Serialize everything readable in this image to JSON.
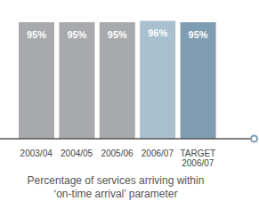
{
  "chart_data": {
    "type": "bar",
    "title": "Percentage of services arriving within ‘on-time arrival’ parameter",
    "categories": [
      "2003/04",
      "2004/05",
      "2005/06",
      "2006/07",
      "TARGET 2006/07"
    ],
    "values": [
      95,
      95,
      95,
      96,
      95
    ],
    "value_labels": [
      "95%",
      "95%",
      "95%",
      "96%",
      "95%"
    ],
    "colors": [
      "#a7a9ac",
      "#a7a9ac",
      "#a7a9ac",
      "#a9c0cf",
      "#7f9db2"
    ],
    "ylim": [
      0,
      100
    ],
    "data_labels": true,
    "tick_labels": "x"
  }
}
